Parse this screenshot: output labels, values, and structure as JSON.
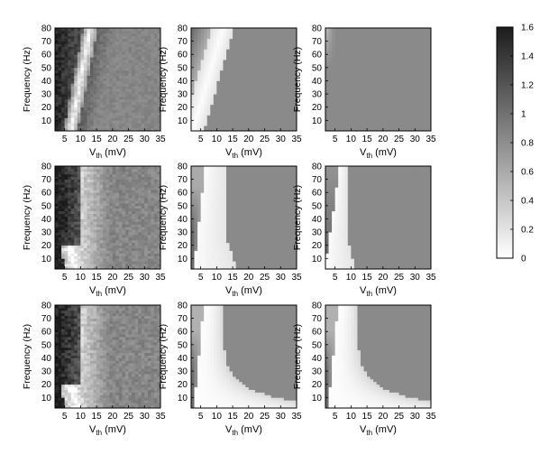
{
  "chart_data": {
    "type": "heatmap",
    "layout": {
      "rows": 3,
      "cols": 3
    },
    "xlabel_main": "V",
    "xlabel_sub": "th",
    "xlabel_unit": " (mV)",
    "ylabel": "Frequency (Hz)",
    "x_ticks": [
      5,
      10,
      15,
      20,
      25,
      30,
      35
    ],
    "y_ticks": [
      10,
      20,
      30,
      40,
      50,
      60,
      70,
      80
    ],
    "xlim": [
      2,
      35
    ],
    "ylim": [
      2,
      80
    ],
    "colorbar": {
      "range": [
        0,
        1.6
      ],
      "ticks": [
        "0",
        "0.2",
        "0.4",
        "0.6",
        "0.8",
        "1",
        "1.2",
        "1.4",
        "1.6"
      ],
      "colors": {
        "low": "#ffffff",
        "high": "#1c1c1c"
      }
    },
    "panels": [
      {
        "row": 0,
        "col": 0,
        "pattern": "noisy-dark-left",
        "background": 0.85,
        "peak": 1.55
      },
      {
        "row": 0,
        "col": 1,
        "pattern": "white-diagonal-band",
        "background": 0.82
      },
      {
        "row": 0,
        "col": 2,
        "pattern": "uniform",
        "background": 0.82
      },
      {
        "row": 1,
        "col": 0,
        "pattern": "noisy-dark-left-white-band",
        "background": 0.85,
        "peak": 1.6
      },
      {
        "row": 1,
        "col": 1,
        "pattern": "dark-lobe-white-wedge",
        "background": 0.82,
        "peak": 1.5
      },
      {
        "row": 1,
        "col": 2,
        "pattern": "narrow-white-wedge",
        "background": 0.82,
        "peak": 1.1
      },
      {
        "row": 2,
        "col": 0,
        "pattern": "noisy-dark-left-white-band",
        "background": 0.85,
        "peak": 1.6
      },
      {
        "row": 2,
        "col": 1,
        "pattern": "dark-lobe-white-curve",
        "background": 0.82,
        "peak": 1.6
      },
      {
        "row": 2,
        "col": 2,
        "pattern": "dark-lobe-white-curve",
        "background": 0.82,
        "peak": 1.6
      }
    ]
  }
}
